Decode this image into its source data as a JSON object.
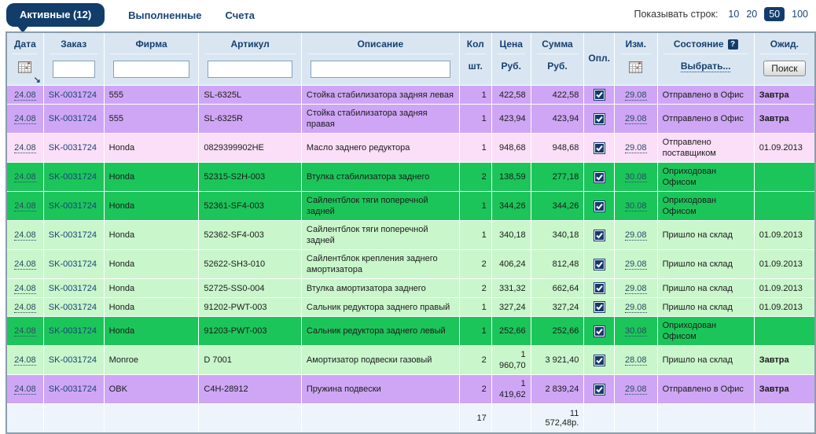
{
  "tabs": {
    "active": {
      "label": "Активные (12)"
    },
    "items": [
      {
        "label": "Выполненные"
      },
      {
        "label": "Счета"
      }
    ]
  },
  "rows_per_page": {
    "label": "Показывать строк:",
    "options": [
      "10",
      "20",
      "50",
      "100"
    ],
    "selected": "50"
  },
  "icons": {
    "help_glyph": "?",
    "sort_glyph": "↘",
    "calendar": "calendar-icon"
  },
  "colors": {
    "violet": "#cfa6f5",
    "pink": "#fbdef7",
    "green": "#1cc55a",
    "lightgreen": "#c9f6cb",
    "navy": "#123d6a",
    "header_bg": "#d9e6f2",
    "footer_bg": "#edf4fb"
  },
  "table": {
    "headers": {
      "date": {
        "label": "Дата"
      },
      "order": {
        "label": "Заказ"
      },
      "firm": {
        "label": "Фирма"
      },
      "articul": {
        "label": "Артикул"
      },
      "desc": {
        "label": "Описание"
      },
      "qty": {
        "label": "Кол",
        "sub": "шт."
      },
      "price": {
        "label": "Цена",
        "sub": "Руб."
      },
      "sum": {
        "label": "Сумма",
        "sub": "Руб."
      },
      "paid": {
        "label": "Опл."
      },
      "mod": {
        "label": "Изм."
      },
      "state": {
        "label": "Состояние",
        "sub": "Выбрать..."
      },
      "wait": {
        "label": "Ожид.",
        "button": "Поиск"
      }
    },
    "filters": {
      "order": "",
      "firm": "",
      "articul": "",
      "desc": ""
    },
    "rows": [
      {
        "color": "violet",
        "date": "24.08",
        "order": "SK-0031724",
        "firm": "555",
        "articul": "SL-6325L",
        "desc": "Стойка стабилизатора задняя левая",
        "qty": "1",
        "price": "422,58",
        "sum": "422,58",
        "paid": true,
        "mod": "29.08",
        "state": "Отправлено в Офис",
        "wait": "Завтра",
        "wait_bold": true
      },
      {
        "color": "violet",
        "date": "24.08",
        "order": "SK-0031724",
        "firm": "555",
        "articul": "SL-6325R",
        "desc": "Стойка стабилизатора задняя правая",
        "qty": "1",
        "price": "423,94",
        "sum": "423,94",
        "paid": true,
        "mod": "29.08",
        "state": "Отправлено в Офис",
        "wait": "Завтра",
        "wait_bold": true
      },
      {
        "color": "pink",
        "date": "24.08",
        "order": "SK-0031724",
        "firm": "Honda",
        "articul": "0829399902HE",
        "desc": "Масло заднего редуктора",
        "qty": "1",
        "price": "948,68",
        "sum": "948,68",
        "paid": true,
        "mod": "29.08",
        "state": "Отправлено поставщиком",
        "wait": "01.09.2013",
        "wait_bold": false
      },
      {
        "color": "green",
        "date": "24.08",
        "order": "SK-0031724",
        "firm": "Honda",
        "articul": "52315-S2H-003",
        "desc": "Втулка стабилизатора заднего",
        "qty": "2",
        "price": "138,59",
        "sum": "277,18",
        "paid": true,
        "mod": "30.08",
        "state": "Оприходован Офисом",
        "wait": "",
        "wait_bold": false
      },
      {
        "color": "green",
        "date": "24.08",
        "order": "SK-0031724",
        "firm": "Honda",
        "articul": "52361-SF4-003",
        "desc": "Сайлентблок тяги поперечной задней",
        "qty": "1",
        "price": "344,26",
        "sum": "344,26",
        "paid": true,
        "mod": "30.08",
        "state": "Оприходован Офисом",
        "wait": "",
        "wait_bold": false
      },
      {
        "color": "lightgreen",
        "date": "24.08",
        "order": "SK-0031724",
        "firm": "Honda",
        "articul": "52362-SF4-003",
        "desc": "Сайлентблок тяги поперечной задней",
        "qty": "1",
        "price": "340,18",
        "sum": "340,18",
        "paid": true,
        "mod": "29.08",
        "state": "Пришло на склад",
        "wait": "01.09.2013",
        "wait_bold": false
      },
      {
        "color": "lightgreen",
        "date": "24.08",
        "order": "SK-0031724",
        "firm": "Honda",
        "articul": "52622-SH3-010",
        "desc": "Сайлентблок крепления заднего амортизатора",
        "qty": "2",
        "price": "406,24",
        "sum": "812,48",
        "paid": true,
        "mod": "29.08",
        "state": "Пришло на склад",
        "wait": "01.09.2013",
        "wait_bold": false
      },
      {
        "color": "lightgreen",
        "date": "24.08",
        "order": "SK-0031724",
        "firm": "Honda",
        "articul": "52725-SS0-004",
        "desc": "Втулка амортизатора заднего",
        "qty": "2",
        "price": "331,32",
        "sum": "662,64",
        "paid": true,
        "mod": "29.08",
        "state": "Пришло на склад",
        "wait": "01.09.2013",
        "wait_bold": false
      },
      {
        "color": "lightgreen",
        "date": "24.08",
        "order": "SK-0031724",
        "firm": "Honda",
        "articul": "91202-PWT-003",
        "desc": "Сальник редуктора заднего правый",
        "qty": "1",
        "price": "327,24",
        "sum": "327,24",
        "paid": true,
        "mod": "29.08",
        "state": "Пришло на склад",
        "wait": "01.09.2013",
        "wait_bold": false
      },
      {
        "color": "green",
        "date": "24.08",
        "order": "SK-0031724",
        "firm": "Honda",
        "articul": "91203-PWT-003",
        "desc": "Сальник редуктора заднего левый",
        "qty": "1",
        "price": "252,66",
        "sum": "252,66",
        "paid": true,
        "mod": "30.08",
        "state": "Оприходован Офисом",
        "wait": "",
        "wait_bold": false
      },
      {
        "color": "lightgreen",
        "date": "24.08",
        "order": "SK-0031724",
        "firm": "Monroe",
        "articul": "D 7001",
        "desc": "Амортизатор подвески газовый",
        "qty": "2",
        "price": "1 960,70",
        "sum": "3 921,40",
        "paid": true,
        "mod": "28.08",
        "state": "Пришло на склад",
        "wait": "Завтра",
        "wait_bold": true
      },
      {
        "color": "violet",
        "date": "24.08",
        "order": "SK-0031724",
        "firm": "OBK",
        "articul": "C4H-28912",
        "desc": "Пружина подвески",
        "qty": "2",
        "price": "1 419,62",
        "sum": "2 839,24",
        "paid": true,
        "mod": "29.08",
        "state": "Отправлено в Офис",
        "wait": "Завтра",
        "wait_bold": true
      }
    ],
    "footer": {
      "qty_total": "17",
      "sum_total": "11 572,48р."
    }
  }
}
